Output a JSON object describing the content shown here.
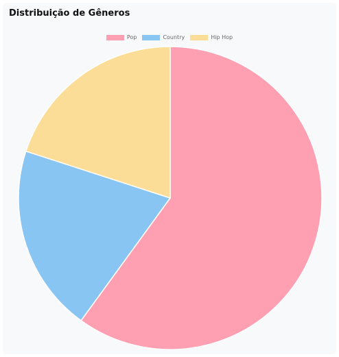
{
  "title": "Distribuição de Gêneros",
  "chart_data": {
    "type": "pie",
    "categories": [
      "Pop",
      "Country",
      "Hip Hop"
    ],
    "values": [
      60,
      20,
      20
    ],
    "colors": [
      "#ff9fb2",
      "#88c5f2",
      "#fcdd97"
    ],
    "legend": "top"
  }
}
